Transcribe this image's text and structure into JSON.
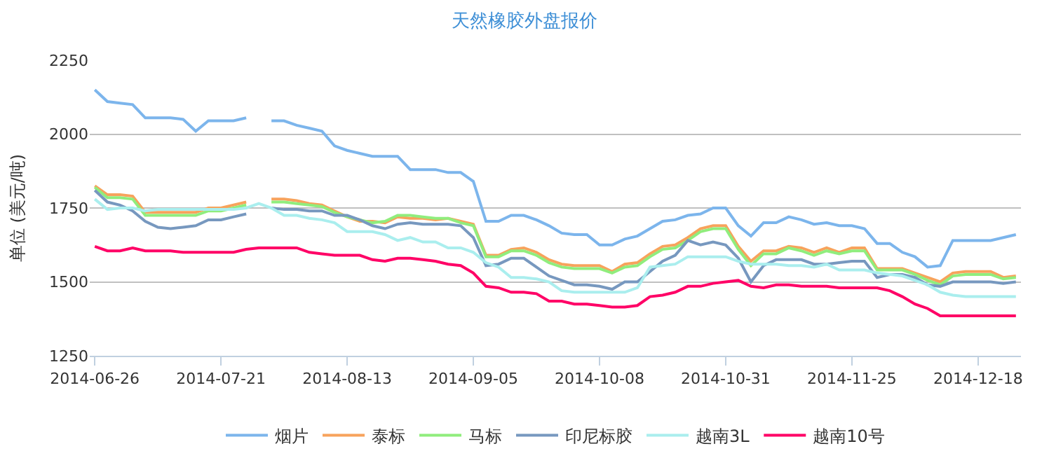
{
  "chart_data": {
    "type": "line",
    "title": "天然橡胶外盘报价",
    "ylabel": "单位 (美元/吨)",
    "categories": [
      "2014-06-26",
      null,
      null,
      null,
      null,
      null,
      null,
      null,
      null,
      null,
      "2014-07-21",
      null,
      null,
      null,
      null,
      null,
      null,
      null,
      null,
      null,
      "2014-08-13",
      null,
      null,
      null,
      null,
      null,
      null,
      null,
      null,
      null,
      "2014-09-05",
      null,
      null,
      null,
      null,
      null,
      null,
      null,
      null,
      null,
      "2014-10-08",
      null,
      null,
      null,
      null,
      null,
      null,
      null,
      null,
      null,
      "2014-10-31",
      null,
      null,
      null,
      null,
      null,
      null,
      null,
      null,
      null,
      "2014-11-25",
      null,
      null,
      null,
      null,
      null,
      null,
      null,
      null,
      null,
      "2014-12-18",
      null,
      null,
      null
    ],
    "series": [
      {
        "name": "烟片",
        "color": "#7cb5ec",
        "values": [
          2150,
          2110,
          2105,
          2100,
          2055,
          2055,
          2055,
          2050,
          2010,
          2045,
          2045,
          2045,
          2055,
          null,
          2045,
          2045,
          2030,
          2020,
          2010,
          1960,
          1945,
          1935,
          1925,
          1925,
          1925,
          1880,
          1880,
          1880,
          1870,
          1870,
          1840,
          1705,
          1705,
          1725,
          1725,
          1710,
          1690,
          1665,
          1660,
          1660,
          1625,
          1625,
          1645,
          1655,
          1680,
          1705,
          1710,
          1725,
          1730,
          1750,
          1750,
          1690,
          1655,
          1700,
          1700,
          1720,
          1710,
          1695,
          1700,
          1690,
          1690,
          1680,
          1630,
          1630,
          1600,
          1585,
          1550,
          1555,
          1640,
          1640,
          1640,
          1640,
          1650,
          1660
        ]
      },
      {
        "name": "泰标",
        "color": "#f7a35c",
        "values": [
          1825,
          1795,
          1795,
          1790,
          1735,
          1735,
          1735,
          1735,
          1735,
          1750,
          1750,
          1760,
          1770,
          null,
          1780,
          1780,
          1775,
          1765,
          1760,
          1740,
          1720,
          1705,
          1705,
          1700,
          1720,
          1715,
          1715,
          1710,
          1715,
          1705,
          1695,
          1590,
          1590,
          1610,
          1615,
          1600,
          1575,
          1560,
          1555,
          1555,
          1555,
          1535,
          1560,
          1565,
          1595,
          1620,
          1625,
          1650,
          1680,
          1690,
          1690,
          1620,
          1570,
          1605,
          1605,
          1620,
          1615,
          1600,
          1615,
          1600,
          1615,
          1615,
          1545,
          1545,
          1545,
          1530,
          1515,
          1500,
          1530,
          1535,
          1535,
          1535,
          1515,
          1520
        ]
      },
      {
        "name": "马标",
        "color": "#90ed7d",
        "values": [
          1820,
          1785,
          1785,
          1780,
          1725,
          1725,
          1725,
          1725,
          1725,
          1740,
          1740,
          1750,
          1760,
          null,
          1770,
          1770,
          1765,
          1760,
          1755,
          1735,
          1720,
          1710,
          1700,
          1705,
          1725,
          1725,
          1720,
          1715,
          1715,
          1700,
          1690,
          1585,
          1585,
          1605,
          1605,
          1590,
          1565,
          1550,
          1545,
          1545,
          1545,
          1530,
          1550,
          1555,
          1585,
          1610,
          1615,
          1640,
          1670,
          1680,
          1680,
          1610,
          1555,
          1595,
          1595,
          1615,
          1605,
          1590,
          1605,
          1595,
          1605,
          1605,
          1540,
          1540,
          1540,
          1525,
          1505,
          1490,
          1520,
          1525,
          1525,
          1525,
          1510,
          1515
        ]
      },
      {
        "name": "印尼标胶",
        "color": "#7798bf",
        "values": [
          1810,
          1770,
          1760,
          1740,
          1705,
          1685,
          1680,
          1685,
          1690,
          1710,
          1710,
          1720,
          1730,
          null,
          1750,
          1745,
          1745,
          1740,
          1740,
          1725,
          1725,
          1710,
          1690,
          1680,
          1695,
          1700,
          1695,
          1695,
          1695,
          1690,
          1650,
          1555,
          1560,
          1580,
          1580,
          1550,
          1520,
          1505,
          1490,
          1490,
          1485,
          1475,
          1500,
          1500,
          1535,
          1570,
          1590,
          1640,
          1625,
          1635,
          1625,
          1580,
          1500,
          1555,
          1575,
          1575,
          1575,
          1560,
          1560,
          1565,
          1570,
          1570,
          1515,
          1525,
          1525,
          1515,
          1490,
          1485,
          1500,
          1500,
          1500,
          1500,
          1495,
          1500
        ]
      },
      {
        "name": "越南3L",
        "color": "#aaeeee",
        "values": [
          1780,
          1745,
          1750,
          1750,
          1740,
          1745,
          1745,
          1745,
          1745,
          1745,
          1745,
          1745,
          1750,
          1765,
          1750,
          1725,
          1725,
          1715,
          1710,
          1700,
          1670,
          1670,
          1670,
          1660,
          1640,
          1650,
          1635,
          1635,
          1615,
          1615,
          1600,
          1565,
          1550,
          1515,
          1515,
          1510,
          1500,
          1470,
          1465,
          1465,
          1465,
          1465,
          1465,
          1480,
          1550,
          1555,
          1560,
          1585,
          1585,
          1585,
          1585,
          1570,
          1560,
          1560,
          1560,
          1555,
          1555,
          1550,
          1560,
          1540,
          1540,
          1540,
          1530,
          1525,
          1520,
          1505,
          1490,
          1465,
          1455,
          1450,
          1450,
          1450,
          1450,
          1450
        ]
      },
      {
        "name": "越南10号",
        "color": "#ff0066",
        "values": [
          1620,
          1605,
          1605,
          1615,
          1605,
          1605,
          1605,
          1600,
          1600,
          1600,
          1600,
          1600,
          1610,
          1615,
          1615,
          1615,
          1615,
          1600,
          1595,
          1590,
          1590,
          1590,
          1575,
          1570,
          1580,
          1580,
          1575,
          1570,
          1560,
          1555,
          1530,
          1485,
          1480,
          1465,
          1465,
          1460,
          1435,
          1435,
          1425,
          1425,
          1420,
          1415,
          1415,
          1420,
          1450,
          1455,
          1465,
          1485,
          1485,
          1495,
          1500,
          1505,
          1485,
          1480,
          1490,
          1490,
          1485,
          1485,
          1485,
          1480,
          1480,
          1480,
          1480,
          1470,
          1450,
          1425,
          1410,
          1385,
          1385,
          1385,
          1385,
          1385,
          1385,
          1385
        ]
      }
    ],
    "ylim": [
      1250,
      2250
    ],
    "yticks": [
      1250,
      1500,
      1750,
      2000,
      2250
    ],
    "grid": "y",
    "legend": "bottom",
    "marker": "none",
    "line_style": "solid"
  }
}
